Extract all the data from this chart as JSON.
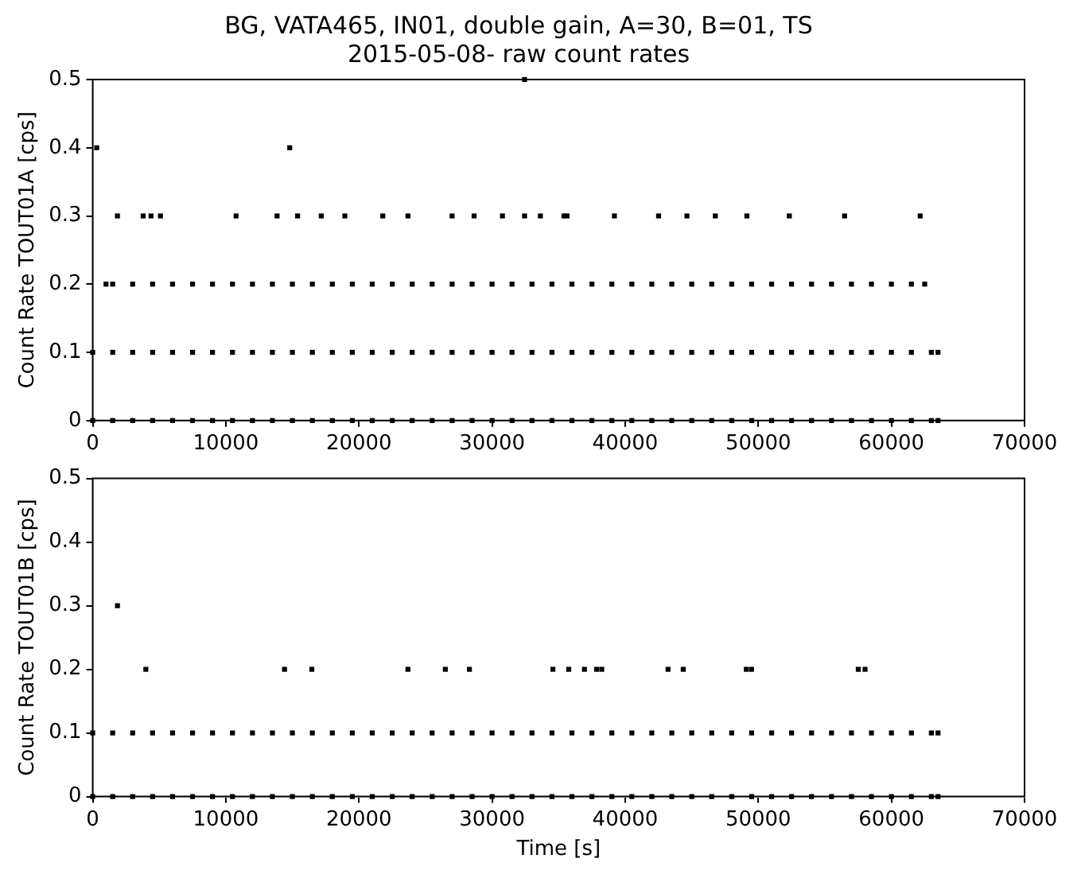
{
  "chart_data": [
    {
      "type": "scatter",
      "title": "BG, VATA465, IN01, double gain, A=30, B=01, TS",
      "subtitle": "2015-05-08- raw count rates",
      "ylabel": "Count Rate TOUT01A [cps]",
      "marker": "square",
      "grid": false,
      "xlim": [
        0,
        70000
      ],
      "ylim": [
        0,
        0.5
      ],
      "xticks": [
        0,
        10000,
        20000,
        30000,
        40000,
        50000,
        60000,
        70000
      ],
      "yticks": [
        0,
        0.1,
        0.2,
        0.3,
        0.4,
        0.5
      ],
      "series": [
        {
          "color": "#000000",
          "x": [
            0,
            1500,
            3000,
            4500,
            6000,
            7500,
            9000,
            10500,
            12000,
            13500,
            15000,
            16500,
            18000,
            19500,
            21000,
            22500,
            24000,
            25500,
            27000,
            28500,
            30000,
            31500,
            33000,
            34500,
            36000,
            37500,
            39000,
            40500,
            42000,
            43500,
            45000,
            46500,
            48000,
            49500,
            51000,
            52500,
            54000,
            55500,
            57000,
            58500,
            60000,
            61500,
            63000,
            63500
          ],
          "values": [
            0,
            0,
            0,
            0,
            0,
            0,
            0,
            0,
            0,
            0,
            0,
            0,
            0,
            0,
            0,
            0,
            0,
            0,
            0,
            0,
            0,
            0,
            0,
            0,
            0,
            0,
            0,
            0,
            0,
            0,
            0,
            0,
            0,
            0,
            0,
            0,
            0,
            0,
            0,
            0,
            0,
            0,
            0,
            0
          ]
        },
        {
          "color": "#000000",
          "x": [
            0,
            1500,
            3000,
            4500,
            6000,
            7500,
            9000,
            10500,
            12000,
            13500,
            15000,
            16500,
            18000,
            19500,
            21000,
            22500,
            24000,
            25500,
            27000,
            28500,
            30000,
            31500,
            33000,
            34500,
            36000,
            37500,
            39000,
            40500,
            42000,
            43500,
            45000,
            46500,
            48000,
            49500,
            51000,
            52500,
            54000,
            55500,
            57000,
            58500,
            60000,
            61500,
            63000,
            63500
          ],
          "values": [
            0.1,
            0.1,
            0.1,
            0.1,
            0.1,
            0.1,
            0.1,
            0.1,
            0.1,
            0.1,
            0.1,
            0.1,
            0.1,
            0.1,
            0.1,
            0.1,
            0.1,
            0.1,
            0.1,
            0.1,
            0.1,
            0.1,
            0.1,
            0.1,
            0.1,
            0.1,
            0.1,
            0.1,
            0.1,
            0.1,
            0.1,
            0.1,
            0.1,
            0.1,
            0.1,
            0.1,
            0.1,
            0.1,
            0.1,
            0.1,
            0.1,
            0.1,
            0.1,
            0.1
          ]
        },
        {
          "color": "#000000",
          "x": [
            1000,
            1500,
            3000,
            4500,
            6000,
            7500,
            9000,
            10500,
            12000,
            13500,
            15000,
            16500,
            18000,
            19500,
            21000,
            22500,
            24000,
            25500,
            27000,
            28500,
            30000,
            31500,
            33000,
            34500,
            36000,
            37500,
            39000,
            40500,
            42000,
            43500,
            45000,
            46500,
            48000,
            49500,
            51000,
            52500,
            54000,
            55500,
            57000,
            58500,
            60000,
            61500,
            62500
          ],
          "values": [
            0.2,
            0.2,
            0.2,
            0.2,
            0.2,
            0.2,
            0.2,
            0.2,
            0.2,
            0.2,
            0.2,
            0.2,
            0.2,
            0.2,
            0.2,
            0.2,
            0.2,
            0.2,
            0.2,
            0.2,
            0.2,
            0.2,
            0.2,
            0.2,
            0.2,
            0.2,
            0.2,
            0.2,
            0.2,
            0.2,
            0.2,
            0.2,
            0.2,
            0.2,
            0.2,
            0.2,
            0.2,
            0.2,
            0.2,
            0.2,
            0.2,
            0.2,
            0.2
          ]
        },
        {
          "color": "#000000",
          "x": [
            1860,
            3790,
            4380,
            5090,
            10770,
            13850,
            15390,
            17170,
            18940,
            21790,
            23680,
            27000,
            28650,
            30780,
            32440,
            33630,
            35400,
            35640,
            39190,
            42510,
            44640,
            46770,
            49140,
            52330,
            56480,
            62160,
            300,
            14800,
            32440
          ],
          "values": [
            0.3,
            0.3,
            0.3,
            0.3,
            0.3,
            0.3,
            0.3,
            0.3,
            0.3,
            0.3,
            0.3,
            0.3,
            0.3,
            0.3,
            0.3,
            0.3,
            0.3,
            0.3,
            0.3,
            0.3,
            0.3,
            0.3,
            0.3,
            0.3,
            0.3,
            0.3,
            0.4,
            0.4,
            0.5
          ]
        }
      ]
    },
    {
      "type": "scatter",
      "xlabel": "Time [s]",
      "ylabel": "Count Rate TOUT01B [cps]",
      "marker": "square",
      "grid": false,
      "xlim": [
        0,
        70000
      ],
      "ylim": [
        0,
        0.5
      ],
      "xticks": [
        0,
        10000,
        20000,
        30000,
        40000,
        50000,
        60000,
        70000
      ],
      "yticks": [
        0,
        0.1,
        0.2,
        0.3,
        0.4,
        0.5
      ],
      "series": [
        {
          "color": "#000000",
          "x": [
            0,
            1500,
            3000,
            4500,
            6000,
            7500,
            9000,
            10500,
            12000,
            13500,
            15000,
            16500,
            18000,
            19500,
            21000,
            22500,
            24000,
            25500,
            27000,
            28500,
            30000,
            31500,
            33000,
            34500,
            36000,
            37500,
            39000,
            40500,
            42000,
            43500,
            45000,
            46500,
            48000,
            49500,
            51000,
            52500,
            54000,
            55500,
            57000,
            58500,
            60000,
            61500,
            63000,
            63500
          ],
          "values": [
            0,
            0,
            0,
            0,
            0,
            0,
            0,
            0,
            0,
            0,
            0,
            0,
            0,
            0,
            0,
            0,
            0,
            0,
            0,
            0,
            0,
            0,
            0,
            0,
            0,
            0,
            0,
            0,
            0,
            0,
            0,
            0,
            0,
            0,
            0,
            0,
            0,
            0,
            0,
            0,
            0,
            0,
            0,
            0
          ]
        },
        {
          "color": "#000000",
          "x": [
            0,
            1500,
            3000,
            4500,
            6000,
            7500,
            9000,
            10500,
            12000,
            13500,
            15000,
            16500,
            18000,
            19500,
            21000,
            22500,
            24000,
            25500,
            27000,
            28500,
            30000,
            31500,
            33000,
            34500,
            36000,
            37500,
            39000,
            40500,
            42000,
            43500,
            45000,
            46500,
            48000,
            49500,
            51000,
            52500,
            54000,
            55500,
            57000,
            58500,
            60000,
            61500,
            63000,
            63500
          ],
          "values": [
            0.1,
            0.1,
            0.1,
            0.1,
            0.1,
            0.1,
            0.1,
            0.1,
            0.1,
            0.1,
            0.1,
            0.1,
            0.1,
            0.1,
            0.1,
            0.1,
            0.1,
            0.1,
            0.1,
            0.1,
            0.1,
            0.1,
            0.1,
            0.1,
            0.1,
            0.1,
            0.1,
            0.1,
            0.1,
            0.1,
            0.1,
            0.1,
            0.1,
            0.1,
            0.1,
            0.1,
            0.1,
            0.1,
            0.1,
            0.1,
            0.1,
            0.1,
            0.1,
            0.1
          ]
        },
        {
          "color": "#000000",
          "x": [
            1860,
            3990,
            14410,
            16460,
            23680,
            26490,
            28300,
            34570,
            35760,
            36940,
            37850,
            38240,
            43220,
            44360,
            49100,
            49490,
            57510,
            58020
          ],
          "values": [
            0.3,
            0.2,
            0.2,
            0.2,
            0.2,
            0.2,
            0.2,
            0.2,
            0.2,
            0.2,
            0.2,
            0.2,
            0.2,
            0.2,
            0.2,
            0.2,
            0.2,
            0.2
          ]
        }
      ]
    }
  ]
}
